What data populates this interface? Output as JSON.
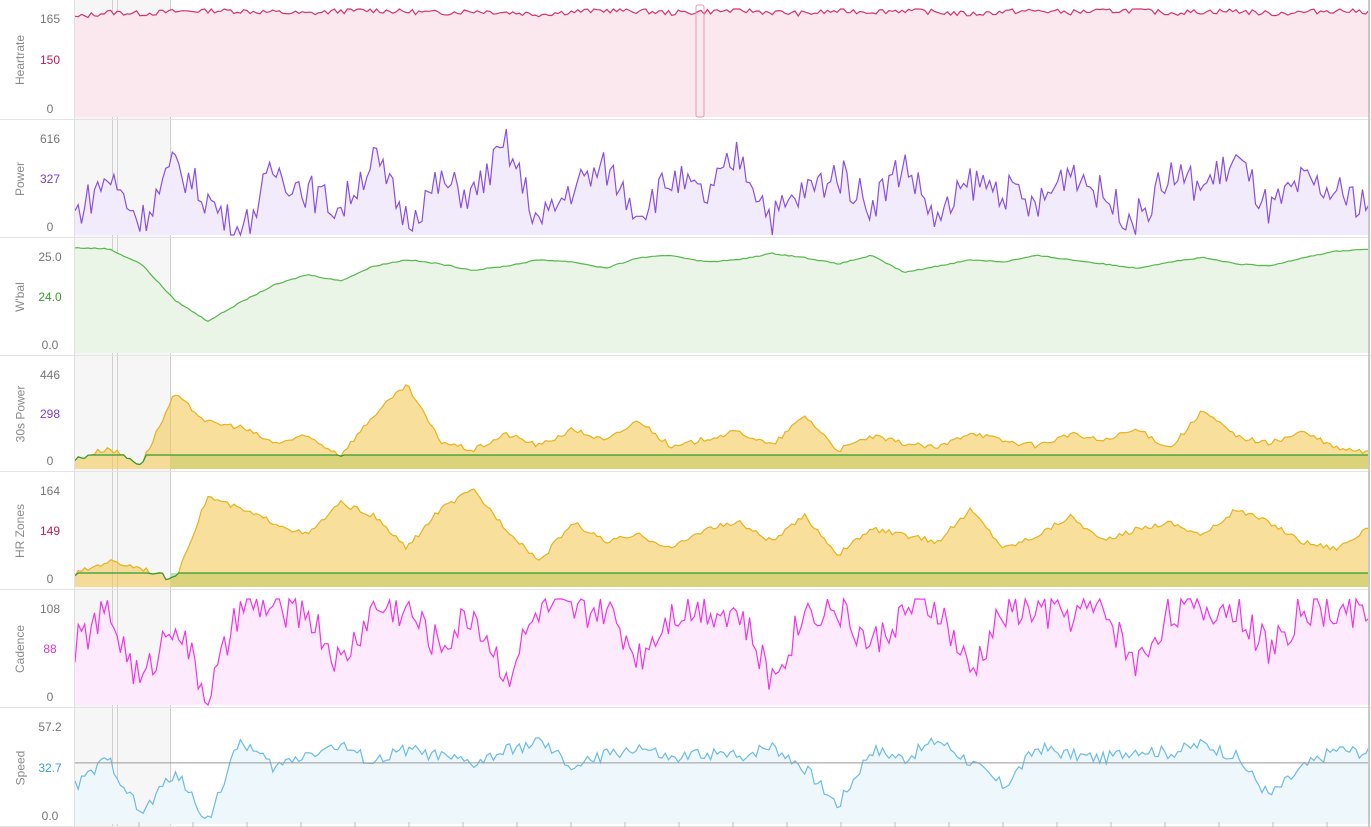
{
  "chart_data": [
    {
      "type": "line",
      "ylabel": "Heartrate",
      "ticks": [
        "165",
        "150",
        "0"
      ],
      "ylim": [
        0,
        165
      ],
      "color": "#d6336c",
      "fill": "#fbe7ee",
      "series": [
        {
          "values": [
            152,
            160,
            158,
            161,
            163,
            162,
            160,
            158,
            162,
            163,
            161,
            159,
            162,
            160,
            157,
            161,
            163,
            162,
            159,
            161,
            163,
            160,
            158,
            162,
            161,
            163,
            160,
            157,
            161,
            162,
            160,
            162,
            163,
            159,
            161,
            162,
            158,
            160,
            163,
            161
          ]
        }
      ]
    },
    {
      "type": "line",
      "ylabel": "Power",
      "ticks": [
        "616",
        "327",
        "0"
      ],
      "ylim": [
        0,
        616
      ],
      "color": "#8a4fe0",
      "fill": "#f1ebfb",
      "series": [
        {
          "values": [
            120,
            340,
            80,
            410,
            210,
            0,
            380,
            260,
            150,
            450,
            90,
            300,
            230,
            520,
            60,
            280,
            390,
            140,
            330,
            210,
            470,
            100,
            250,
            360,
            180,
            420,
            70,
            310,
            260,
            150,
            400,
            220,
            90,
            350,
            280,
            440,
            130,
            300,
            240,
            190
          ]
        }
      ]
    },
    {
      "type": "line",
      "ylabel": "W'bal",
      "ticks": [
        "25.0",
        "24.0",
        "0.0"
      ],
      "ylim": [
        0,
        25
      ],
      "color": "#55b84a",
      "fill": "#eaf5e8",
      "series": [
        {
          "values": [
            24.8,
            24.6,
            21.0,
            12.5,
            7.5,
            12.0,
            16.0,
            18.5,
            17.0,
            20.5,
            22.0,
            21.0,
            19.5,
            20.5,
            22.0,
            21.5,
            20.0,
            22.5,
            23.0,
            21.5,
            22.0,
            23.5,
            22.5,
            21.0,
            23.0,
            19.0,
            20.5,
            22.0,
            21.5,
            23.0,
            22.0,
            21.0,
            20.0,
            21.5,
            22.5,
            21.0,
            20.5,
            22.5,
            24.0,
            24.5
          ]
        }
      ]
    },
    {
      "type": "area",
      "ylabel": "30s Power",
      "ticks": [
        "446",
        "298",
        "0"
      ],
      "ylim": [
        0,
        446
      ],
      "color": "#2e9b2e",
      "fill": "#f3c74a",
      "series": [
        {
          "values": [
            40,
            90,
            20,
            320,
            200,
            180,
            110,
            140,
            60,
            230,
            360,
            120,
            80,
            150,
            100,
            170,
            120,
            210,
            90,
            130,
            160,
            100,
            230,
            80,
            140,
            110,
            90,
            160,
            120,
            100,
            150,
            120,
            170,
            90,
            250,
            140,
            110,
            160,
            90,
            70
          ]
        }
      ]
    },
    {
      "type": "area",
      "ylabel": "HR Zones",
      "ticks": [
        "164",
        "149",
        "0"
      ],
      "ylim": [
        0,
        164
      ],
      "color": "#2e9b2e",
      "fill": "#f3c74a",
      "series": [
        {
          "values": [
            20,
            40,
            30,
            10,
            140,
            120,
            100,
            80,
            130,
            110,
            60,
            120,
            150,
            90,
            40,
            100,
            70,
            80,
            60,
            90,
            100,
            70,
            110,
            50,
            90,
            80,
            70,
            120,
            60,
            80,
            110,
            70,
            90,
            100,
            80,
            120,
            100,
            70,
            60,
            90
          ]
        }
      ]
    },
    {
      "type": "line",
      "ylabel": "Cadence",
      "ticks": [
        "108",
        "88",
        "0"
      ],
      "ylim": [
        0,
        108
      ],
      "color": "#f035e8",
      "fill": "#fdeafc",
      "series": [
        {
          "values": [
            60,
            95,
            20,
            90,
            5,
            100,
            98,
            96,
            40,
            99,
            97,
            60,
            95,
            30,
            98,
            92,
            97,
            50,
            96,
            99,
            94,
            25,
            97,
            98,
            60,
            95,
            99,
            30,
            97,
            96,
            93,
            99,
            40,
            98,
            96,
            100,
            55,
            97,
            95,
            98
          ]
        }
      ]
    },
    {
      "type": "line",
      "ylabel": "Speed",
      "ticks": [
        "57.2",
        "32.7",
        "0.0"
      ],
      "ylim": [
        0,
        57.2
      ],
      "color": "#6dbbe6",
      "fill": "#eef7fc",
      "series": [
        {
          "values": [
            20,
            35,
            5,
            28,
            2,
            45,
            30,
            38,
            42,
            33,
            40,
            36,
            32,
            39,
            44,
            30,
            37,
            41,
            34,
            38,
            36,
            42,
            30,
            10,
            40,
            35,
            45,
            33,
            20,
            41,
            37,
            35,
            40,
            38,
            43,
            36,
            15,
            30,
            40,
            38
          ]
        }
      ]
    }
  ]
}
